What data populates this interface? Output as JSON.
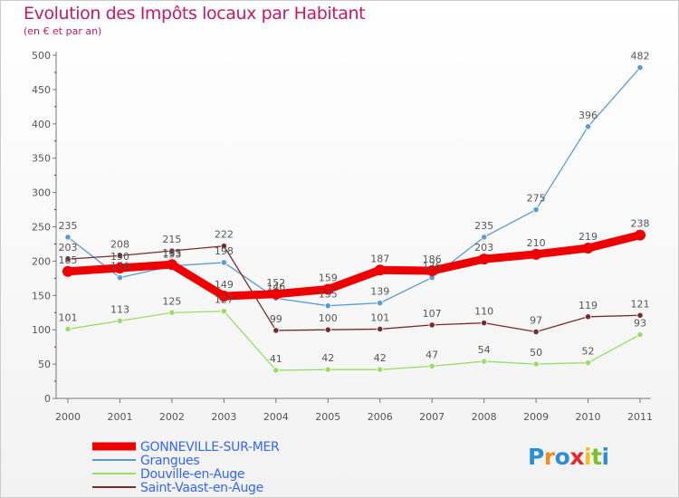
{
  "title": "Evolution des Impôts locaux par Habitant",
  "subtitle": "(en € et par an)",
  "logo": [
    "P",
    "r",
    "o",
    "x",
    "i",
    "t",
    "i"
  ],
  "logo_colors": [
    "#2a8fd6",
    "#f28c1c",
    "#2a8fd6",
    "#e8262b",
    "#f2c21c",
    "#7cbf2a",
    "#2a8fd6"
  ],
  "chart_data": {
    "type": "line",
    "x": [
      2000,
      2001,
      2002,
      2003,
      2004,
      2005,
      2006,
      2007,
      2008,
      2009,
      2010,
      2011
    ],
    "ylim": [
      0,
      500
    ],
    "yticks": [
      0,
      50,
      100,
      150,
      200,
      250,
      300,
      350,
      400,
      450,
      500
    ],
    "grid": false,
    "legend_position": "bottom-left",
    "series": [
      {
        "name": "Grangues",
        "color": "#5b9bd5",
        "values": [
          235,
          176,
          193,
          198,
          146,
          135,
          139,
          176,
          235,
          275,
          396,
          482
        ]
      },
      {
        "name": "Douville-en-Auge",
        "color": "#99dd66",
        "values": [
          101,
          113,
          125,
          127,
          41,
          42,
          42,
          47,
          54,
          50,
          52,
          93
        ]
      },
      {
        "name": "Saint-Vaast-en-Auge",
        "color": "#7a2a2a",
        "values": [
          203,
          208,
          215,
          222,
          99,
          100,
          101,
          107,
          110,
          97,
          119,
          121
        ]
      },
      {
        "name": "GONNEVILLE-SUR-MER",
        "color": "#ee0000",
        "values": [
          185,
          190,
          195,
          149,
          152,
          159,
          187,
          186,
          203,
          210,
          219,
          238
        ]
      }
    ],
    "legend": [
      {
        "name": "GONNEVILLE-SUR-MER",
        "color": "#ee0000",
        "text_color": "#3366ff"
      },
      {
        "name": "Grangues",
        "color": "#5b9bd5",
        "text_color": "#3366ff"
      },
      {
        "name": "Douville-en-Auge",
        "color": "#99dd66",
        "text_color": "#3366ff"
      },
      {
        "name": "Saint-Vaast-en-Auge",
        "color": "#7a2a2a",
        "text_color": "#3366ff"
      }
    ]
  }
}
